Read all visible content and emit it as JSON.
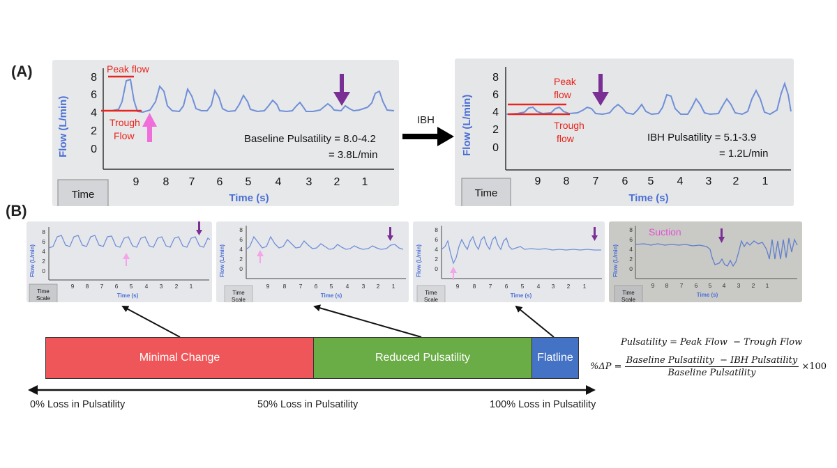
{
  "panel_a_label": "(A)",
  "panel_b_label": "(B)",
  "ibh_label": "IBH",
  "monitor_common": {
    "ylabel": "Flow (L/min)",
    "xlabel": "Time (s)",
    "time_button": "Time",
    "time_button_partial": "Scale",
    "y_ticks": [
      "8",
      "6",
      "4",
      "2",
      "0"
    ],
    "x_ticks": [
      "9",
      "8",
      "7",
      "6",
      "5",
      "4",
      "3",
      "2",
      "1"
    ]
  },
  "baseline": {
    "peak_label": "Peak flow",
    "trough_label_1": "Trough",
    "trough_label_2": "Flow",
    "pulsatility_line1": "Baseline Pulsatility = 8.0-4.2",
    "pulsatility_line2": "= 3.8L/min"
  },
  "ibh": {
    "peak_label_1": "Peak",
    "peak_label_2": "flow",
    "trough_label_1": "Trough",
    "trough_label_2": "flow",
    "pulsatility_line1": "IBH Pulsatility = 5.1-3.9",
    "pulsatility_line2": "= 1.2L/min"
  },
  "suction_label": "Suction",
  "bar": {
    "segments": [
      {
        "label": "Minimal Change",
        "color": "#ef5659"
      },
      {
        "label": "Reduced Pulsatility",
        "color": "#6aac46"
      },
      {
        "label": "Flatline",
        "color": "#4472c4"
      }
    ]
  },
  "scale": {
    "left": "0% Loss in Pulsatility",
    "mid": "50% Loss in Pulsatility",
    "right": "100% Loss in Pulsatility"
  },
  "formula": {
    "line1": "Pulsatility = Peak Flow  − Trough Flow",
    "lhs": "%ΔP =",
    "numerator": "Baseline Pulsatility  − IBH Pulsatility",
    "denominator": "Baseline Pulsatility",
    "factor": "×100"
  },
  "colors": {
    "trace": "#6f8fd8",
    "screen_text": "#4a6fd6",
    "red": "#e8241c",
    "pink_arrow": "#f06ed9",
    "purple_arrow": "#7a2f95",
    "suction_text": "#e055d0"
  }
}
